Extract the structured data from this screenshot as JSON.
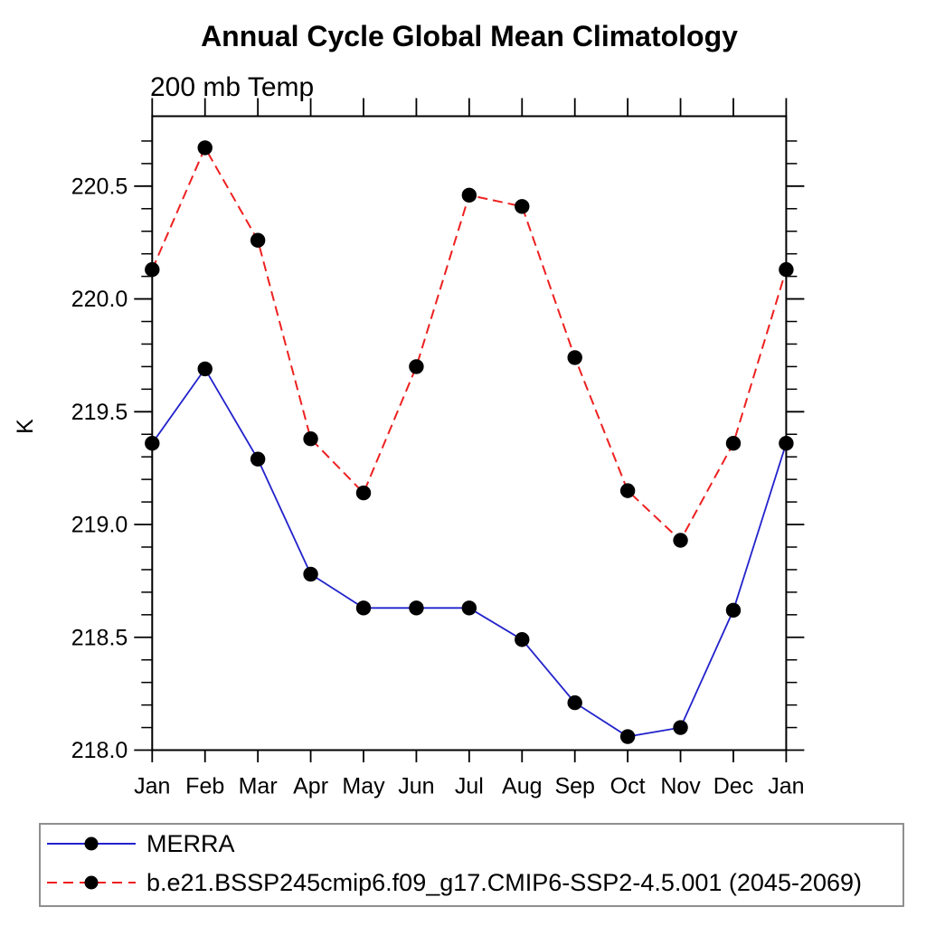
{
  "chart_data": {
    "type": "line",
    "title": "Annual Cycle Global Mean Climatology",
    "subtitle": "200 mb Temp",
    "ylabel": "K",
    "xlabel": "",
    "categories": [
      "Jan",
      "Feb",
      "Mar",
      "Apr",
      "May",
      "Jun",
      "Jul",
      "Aug",
      "Sep",
      "Oct",
      "Nov",
      "Dec",
      "Jan"
    ],
    "ylim": [
      218.0,
      220.81
    ],
    "ytick_major": [
      218.0,
      218.5,
      219.0,
      219.5,
      220.0,
      220.5
    ],
    "ytick_major_labels": [
      "218.0",
      "218.5",
      "219.0",
      "219.5",
      "220.0",
      "220.5"
    ],
    "ytick_minor_step": 0.1,
    "grid": false,
    "legend_position": "bottom-left-box",
    "axis_color": "#000000",
    "marker_color": "#000000",
    "series": [
      {
        "name": "MERRA",
        "color": "#2222cc",
        "style": "solid",
        "marker": "circle",
        "values": [
          219.36,
          219.69,
          219.29,
          218.78,
          218.63,
          218.63,
          218.63,
          218.49,
          218.21,
          218.06,
          218.1,
          218.62,
          219.36
        ]
      },
      {
        "name": "b.e21.BSSP245cmip6.f09_g17.CMIP6-SSP2-4.5.001 (2045-2069)",
        "color": "#ee2020",
        "style": "dashed",
        "marker": "circle",
        "values": [
          220.13,
          220.67,
          220.26,
          219.38,
          219.14,
          219.7,
          220.46,
          220.41,
          219.74,
          219.15,
          218.93,
          219.36,
          220.13
        ]
      }
    ]
  }
}
